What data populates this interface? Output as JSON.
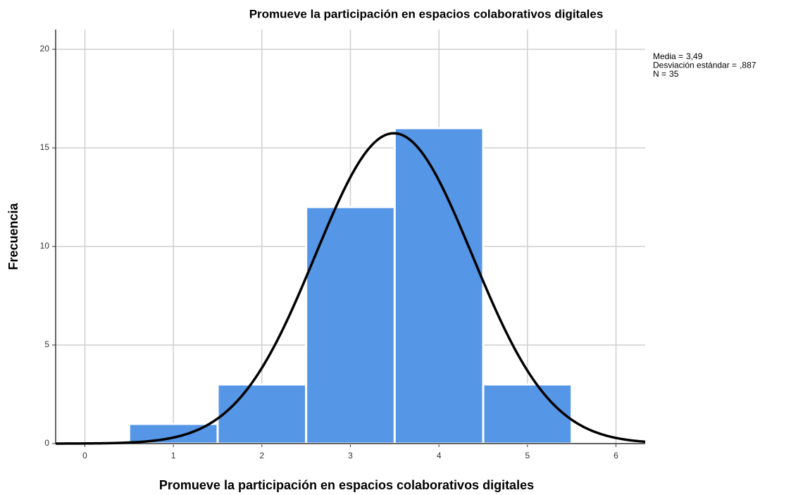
{
  "chart_data": {
    "type": "histogram",
    "title": "Promueve la participación en espacios colaborativos digitales",
    "x_label": "Promueve la participación en espacios colaborativos digitales",
    "y_label": "Frecuencia",
    "bins": [
      0.5,
      1.5,
      2.5,
      3.5,
      4.5,
      5.5
    ],
    "counts": [
      1,
      3,
      12,
      16,
      3
    ],
    "color": "#5596e6",
    "xlim": [
      -0.33,
      6.33
    ],
    "xticks": [
      0,
      1,
      2,
      3,
      4,
      5,
      6
    ],
    "ylim": [
      0,
      21
    ],
    "yticks": [
      0,
      5,
      10,
      15,
      20
    ],
    "grid": true,
    "normal_curve": true,
    "stats": [
      {
        "label": "Media =",
        "value": 3.49,
        "value_label": "3,49"
      },
      {
        "label": "Desviación estándar =",
        "value": 0.887,
        "value_label": ",887"
      },
      {
        "label": "N =",
        "value": 35,
        "value_label": "35"
      }
    ]
  }
}
